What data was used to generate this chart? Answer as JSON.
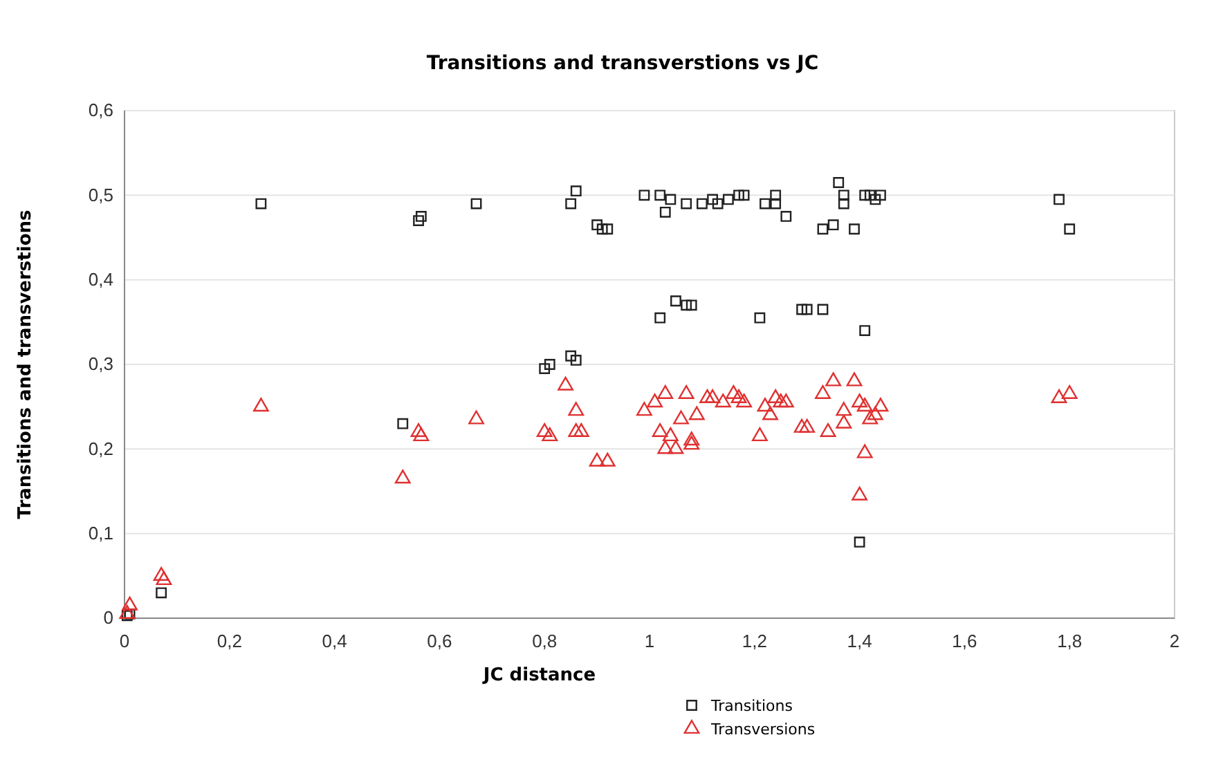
{
  "chart_data": {
    "type": "scatter",
    "title": "Transitions and transverstions vs JC",
    "xlabel": "JC distance",
    "ylabel": "Transitions and transverstions",
    "xlim": [
      0,
      2
    ],
    "ylim": [
      0,
      0.6
    ],
    "xticks": [
      {
        "value": 0,
        "label": "0"
      },
      {
        "value": 0.2,
        "label": "0,2"
      },
      {
        "value": 0.4,
        "label": "0,4"
      },
      {
        "value": 0.6,
        "label": "0,6"
      },
      {
        "value": 0.8,
        "label": "0,8"
      },
      {
        "value": 1,
        "label": "1"
      },
      {
        "value": 1.2,
        "label": "1,2"
      },
      {
        "value": 1.4,
        "label": "1,4"
      },
      {
        "value": 1.6,
        "label": "1,6"
      },
      {
        "value": 1.8,
        "label": "1,8"
      },
      {
        "value": 2,
        "label": "2"
      }
    ],
    "yticks": [
      {
        "value": 0,
        "label": "0"
      },
      {
        "value": 0.1,
        "label": "0,1"
      },
      {
        "value": 0.2,
        "label": "0,2"
      },
      {
        "value": 0.3,
        "label": "0,3"
      },
      {
        "value": 0.4,
        "label": "0,4"
      },
      {
        "value": 0.5,
        "label": "0,5"
      },
      {
        "value": 0.6,
        "label": "0,6"
      }
    ],
    "grid": "y",
    "legend": "bottom",
    "series": [
      {
        "name": "Transitions",
        "color": "#222222",
        "marker": "square",
        "x": [
          0.005,
          0.01,
          0.07,
          0.26,
          0.53,
          0.56,
          0.565,
          0.67,
          0.8,
          0.81,
          0.85,
          0.86,
          0.85,
          0.86,
          0.9,
          0.91,
          0.92,
          0.99,
          1.02,
          1.03,
          1.04,
          1.02,
          1.05,
          1.07,
          1.08,
          1.07,
          1.1,
          1.12,
          1.13,
          1.15,
          1.17,
          1.18,
          1.21,
          1.22,
          1.24,
          1.24,
          1.26,
          1.29,
          1.3,
          1.33,
          1.33,
          1.35,
          1.36,
          1.37,
          1.37,
          1.39,
          1.41,
          1.4,
          1.41,
          1.42,
          1.44,
          1.43,
          1.78,
          1.8
        ],
        "values": [
          0.003,
          0.005,
          0.03,
          0.49,
          0.23,
          0.47,
          0.475,
          0.49,
          0.295,
          0.3,
          0.31,
          0.305,
          0.49,
          0.505,
          0.465,
          0.46,
          0.46,
          0.5,
          0.5,
          0.48,
          0.495,
          0.355,
          0.375,
          0.37,
          0.37,
          0.49,
          0.49,
          0.495,
          0.49,
          0.495,
          0.5,
          0.5,
          0.355,
          0.49,
          0.49,
          0.5,
          0.475,
          0.365,
          0.365,
          0.365,
          0.46,
          0.465,
          0.515,
          0.49,
          0.5,
          0.46,
          0.34,
          0.09,
          0.5,
          0.5,
          0.5,
          0.495,
          0.495,
          0.46
        ]
      },
      {
        "name": "Transversions",
        "color": "#e03030",
        "marker": "triangle",
        "x": [
          0.005,
          0.01,
          0.07,
          0.075,
          0.26,
          0.53,
          0.56,
          0.565,
          0.67,
          0.8,
          0.81,
          0.84,
          0.86,
          0.86,
          0.87,
          0.9,
          0.92,
          0.99,
          1.01,
          1.02,
          1.03,
          1.03,
          1.04,
          1.05,
          1.06,
          1.07,
          1.08,
          1.08,
          1.09,
          1.11,
          1.12,
          1.14,
          1.16,
          1.17,
          1.18,
          1.21,
          1.22,
          1.23,
          1.24,
          1.25,
          1.26,
          1.29,
          1.3,
          1.33,
          1.34,
          1.35,
          1.37,
          1.37,
          1.39,
          1.4,
          1.41,
          1.41,
          1.4,
          1.42,
          1.44,
          1.43,
          1.78,
          1.8
        ],
        "values": [
          0.005,
          0.015,
          0.05,
          0.045,
          0.25,
          0.165,
          0.22,
          0.215,
          0.235,
          0.22,
          0.215,
          0.275,
          0.245,
          0.22,
          0.22,
          0.185,
          0.185,
          0.245,
          0.255,
          0.22,
          0.265,
          0.2,
          0.215,
          0.2,
          0.235,
          0.265,
          0.21,
          0.205,
          0.24,
          0.26,
          0.26,
          0.255,
          0.265,
          0.26,
          0.255,
          0.215,
          0.25,
          0.24,
          0.26,
          0.255,
          0.255,
          0.225,
          0.225,
          0.265,
          0.22,
          0.28,
          0.245,
          0.23,
          0.28,
          0.255,
          0.25,
          0.195,
          0.145,
          0.235,
          0.25,
          0.24,
          0.26,
          0.265
        ]
      }
    ]
  }
}
